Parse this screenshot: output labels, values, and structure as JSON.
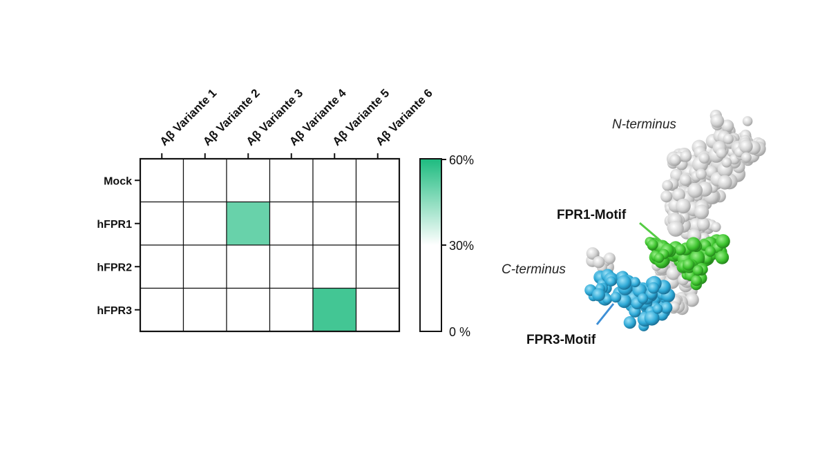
{
  "chart_data": {
    "type": "heatmap",
    "columns": [
      "Aβ Variante 1",
      "Aβ Variante 2",
      "Aβ Variante 3",
      "Aβ Variante 4",
      "Aβ Variante 5",
      "Aβ Variante 6"
    ],
    "rows": [
      "Mock",
      "hFPR1",
      "hFPR2",
      "hFPR3"
    ],
    "values": [
      [
        0,
        0,
        0,
        0,
        0,
        0
      ],
      [
        0,
        0,
        50,
        0,
        0,
        0
      ],
      [
        0,
        0,
        0,
        0,
        0,
        0
      ],
      [
        0,
        0,
        0,
        0,
        55,
        0
      ]
    ],
    "color_scale": {
      "min": 0,
      "mid": 30,
      "max": 60,
      "min_color": "#ffffff",
      "mid_color": "#ffffff",
      "max_color": "#1dbb7f",
      "tick_labels": [
        "60%",
        "30%",
        "0 %"
      ]
    }
  },
  "structure": {
    "n_terminus_label": "N-terminus",
    "c_terminus_label": "C-terminus",
    "fpr1_motif_label": "FPR1-Motif",
    "fpr3_motif_label": "FPR3-Motif",
    "colors": {
      "backbone": "#d4d4d4",
      "fpr1": "#3ec42f",
      "fpr3": "#2ea9d6",
      "fpr1_pointer": "#55cc44",
      "fpr3_pointer": "#3d8fd6"
    }
  }
}
